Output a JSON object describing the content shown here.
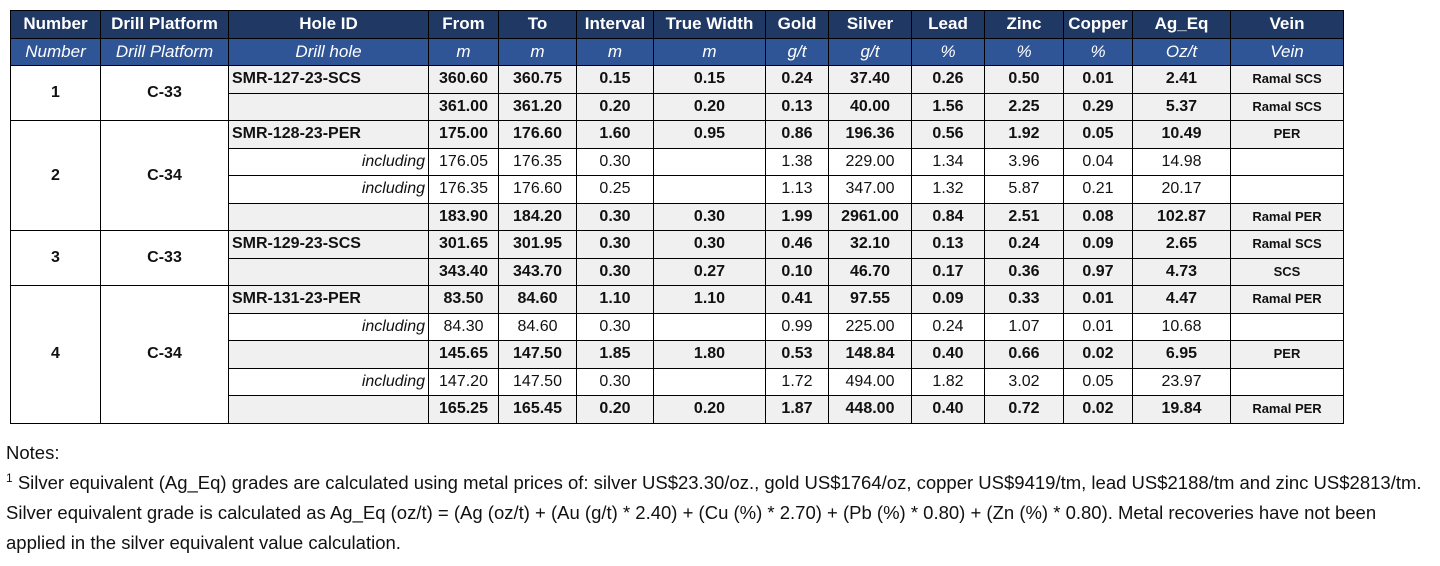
{
  "table": {
    "headers": [
      "Number",
      "Drill Platform",
      "Hole ID",
      "From",
      "To",
      "Interval",
      "True Width",
      "Gold",
      "Silver",
      "Lead",
      "Zinc",
      "Copper",
      "Ag_Eq",
      "Vein"
    ],
    "subheaders": [
      "Number",
      "Drill Platform",
      "Drill hole",
      "m",
      "m",
      "m",
      "m",
      "g/t",
      "g/t",
      "%",
      "%",
      "%",
      "Oz/t",
      "Vein"
    ],
    "groups": [
      {
        "number": "1",
        "platform": "C-33",
        "rows": [
          {
            "hole": "SMR-127-23-SCS",
            "from": "360.60",
            "to": "360.75",
            "interval": "0.15",
            "true_width": "0.15",
            "gold": "0.24",
            "silver": "37.40",
            "lead": "0.26",
            "zinc": "0.50",
            "copper": "0.01",
            "ag_eq": "2.41",
            "vein": "Ramal SCS"
          },
          {
            "hole": "",
            "from": "361.00",
            "to": "361.20",
            "interval": "0.20",
            "true_width": "0.20",
            "gold": "0.13",
            "silver": "40.00",
            "lead": "1.56",
            "zinc": "2.25",
            "copper": "0.29",
            "ag_eq": "5.37",
            "vein": "Ramal SCS"
          }
        ]
      },
      {
        "number": "2",
        "platform": "C-34",
        "rows": [
          {
            "hole": "SMR-128-23-PER",
            "from": "175.00",
            "to": "176.60",
            "interval": "1.60",
            "true_width": "0.95",
            "gold": "0.86",
            "silver": "196.36",
            "lead": "0.56",
            "zinc": "1.92",
            "copper": "0.05",
            "ag_eq": "10.49",
            "vein": "PER"
          },
          {
            "hole": "including",
            "from": "176.05",
            "to": "176.35",
            "interval": "0.30",
            "true_width": "",
            "gold": "1.38",
            "silver": "229.00",
            "lead": "1.34",
            "zinc": "3.96",
            "copper": "0.04",
            "ag_eq": "14.98",
            "vein": ""
          },
          {
            "hole": "including",
            "from": "176.35",
            "to": "176.60",
            "interval": "0.25",
            "true_width": "",
            "gold": "1.13",
            "silver": "347.00",
            "lead": "1.32",
            "zinc": "5.87",
            "copper": "0.21",
            "ag_eq": "20.17",
            "vein": ""
          },
          {
            "hole": "",
            "from": "183.90",
            "to": "184.20",
            "interval": "0.30",
            "true_width": "0.30",
            "gold": "1.99",
            "silver": "2961.00",
            "lead": "0.84",
            "zinc": "2.51",
            "copper": "0.08",
            "ag_eq": "102.87",
            "vein": "Ramal PER"
          }
        ]
      },
      {
        "number": "3",
        "platform": "C-33",
        "rows": [
          {
            "hole": "SMR-129-23-SCS",
            "from": "301.65",
            "to": "301.95",
            "interval": "0.30",
            "true_width": "0.30",
            "gold": "0.46",
            "silver": "32.10",
            "lead": "0.13",
            "zinc": "0.24",
            "copper": "0.09",
            "ag_eq": "2.65",
            "vein": "Ramal SCS"
          },
          {
            "hole": "",
            "from": "343.40",
            "to": "343.70",
            "interval": "0.30",
            "true_width": "0.27",
            "gold": "0.10",
            "silver": "46.70",
            "lead": "0.17",
            "zinc": "0.36",
            "copper": "0.97",
            "ag_eq": "4.73",
            "vein": "SCS"
          }
        ]
      },
      {
        "number": "4",
        "platform": "C-34",
        "rows": [
          {
            "hole": "SMR-131-23-PER",
            "from": "83.50",
            "to": "84.60",
            "interval": "1.10",
            "true_width": "1.10",
            "gold": "0.41",
            "silver": "97.55",
            "lead": "0.09",
            "zinc": "0.33",
            "copper": "0.01",
            "ag_eq": "4.47",
            "vein": "Ramal PER"
          },
          {
            "hole": "including",
            "from": "84.30",
            "to": "84.60",
            "interval": "0.30",
            "true_width": "",
            "gold": "0.99",
            "silver": "225.00",
            "lead": "0.24",
            "zinc": "1.07",
            "copper": "0.01",
            "ag_eq": "10.68",
            "vein": ""
          },
          {
            "hole": "",
            "from": "145.65",
            "to": "147.50",
            "interval": "1.85",
            "true_width": "1.80",
            "gold": "0.53",
            "silver": "148.84",
            "lead": "0.40",
            "zinc": "0.66",
            "copper": "0.02",
            "ag_eq": "6.95",
            "vein": "PER"
          },
          {
            "hole": "including",
            "from": "147.20",
            "to": "147.50",
            "interval": "0.30",
            "true_width": "",
            "gold": "1.72",
            "silver": "494.00",
            "lead": "1.82",
            "zinc": "3.02",
            "copper": "0.05",
            "ag_eq": "23.97",
            "vein": ""
          },
          {
            "hole": "",
            "from": "165.25",
            "to": "165.45",
            "interval": "0.20",
            "true_width": "0.20",
            "gold": "1.87",
            "silver": "448.00",
            "lead": "0.40",
            "zinc": "0.72",
            "copper": "0.02",
            "ag_eq": "19.84",
            "vein": "Ramal PER"
          }
        ]
      }
    ]
  },
  "notes": {
    "heading": "Notes:",
    "footnote_marker": "1",
    "text": "Silver equivalent (Ag_Eq) grades are calculated using metal prices of: silver US$23.30/oz., gold US$1764/oz, copper US$9419/tm, lead US$2188/tm and zinc US$2813/tm. Silver equivalent grade is calculated as Ag_Eq (oz/t) = (Ag (oz/t) + (Au (g/t)  *  2.40) + (Cu (%) * 2.70) + (Pb (%) * 0.80) + (Zn (%) * 0.80).  Metal recoveries have not been applied in the silver equivalent value calculation."
  },
  "colors": {
    "header_dark": "#1f3864",
    "header_mid": "#2f5597",
    "row_shade": "#f0f0f0"
  }
}
